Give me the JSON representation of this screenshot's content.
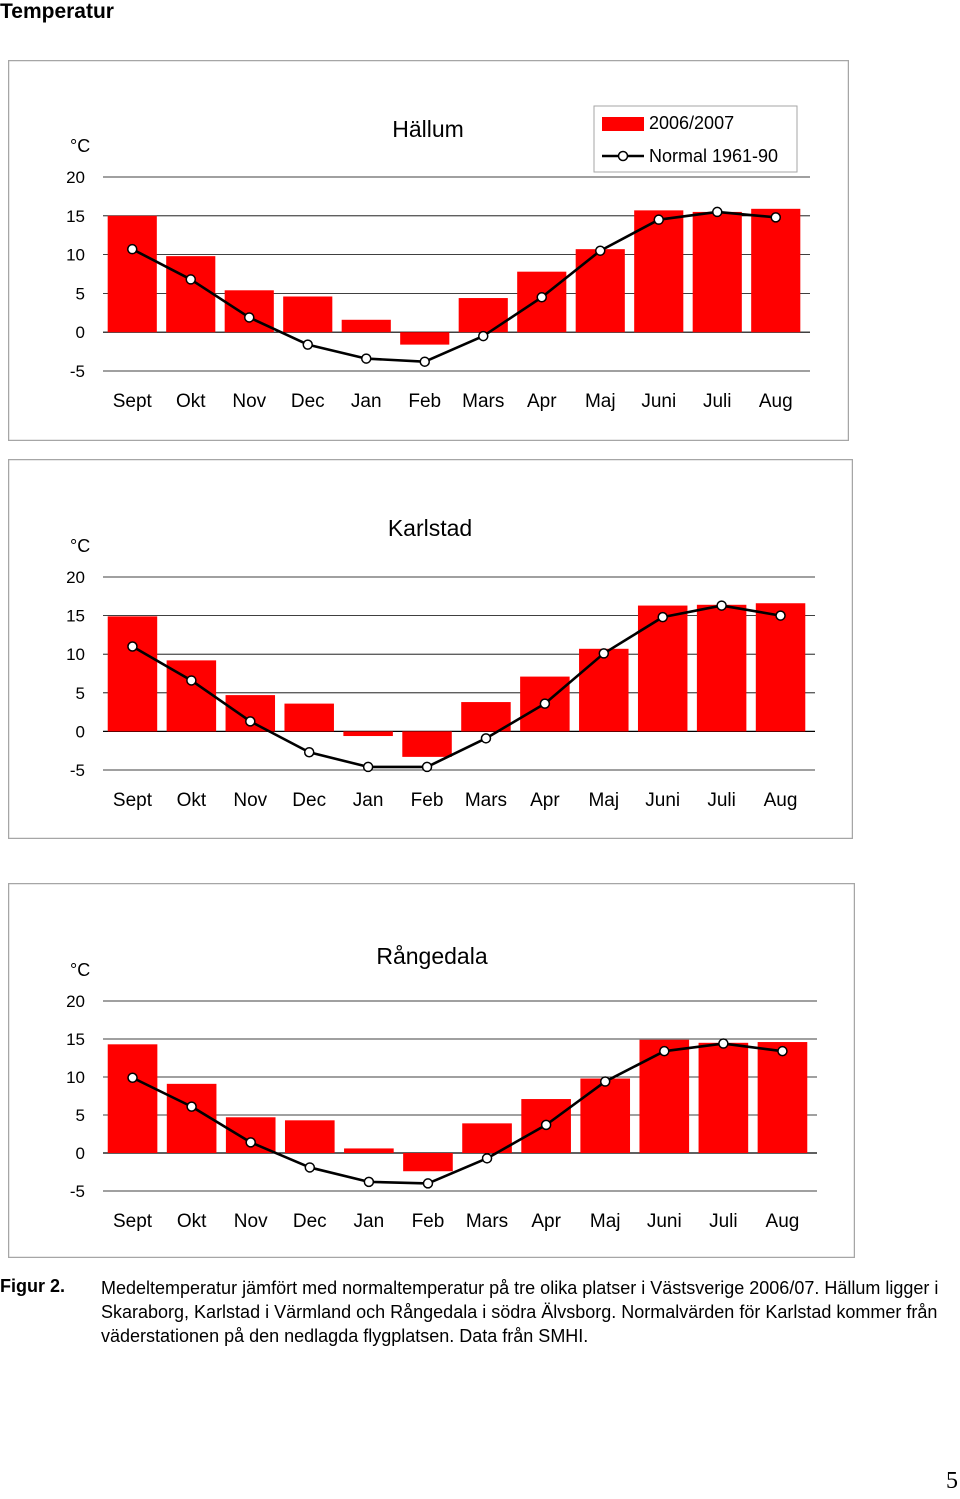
{
  "page": {
    "heading": "Temperatur",
    "figure_label": "Figur 2.",
    "caption": "Medeltemperatur jämfört med normaltemperatur på tre olika platser i Västsverige 2006/07. Hällum ligger i Skaraborg, Karlstad i Värmland och Rångedala i södra Älvsborg. Normalvärden för Karlstad kommer från väderstationen på den nedlagda flygplatsen. Data från SMHI.",
    "page_number": "5"
  },
  "colors": {
    "bar": "#ff0000",
    "line": "#000000",
    "marker_fill": "#ffffff",
    "grid": "#000000",
    "panel_border": "#a6a6a6"
  },
  "chart_data": [
    {
      "type": "bar",
      "title": "Hällum",
      "ylabel": "°C",
      "ylim": [
        -5,
        20
      ],
      "yticks": [
        20,
        15,
        10,
        5,
        0,
        -5
      ],
      "grid": true,
      "legend": "top-right",
      "categories": [
        "Sept",
        "Okt",
        "Nov",
        "Dec",
        "Jan",
        "Feb",
        "Mars",
        "Apr",
        "Maj",
        "Juni",
        "Juli",
        "Aug"
      ],
      "series": [
        {
          "name": "2006/2007",
          "kind": "bar",
          "values": [
            15.0,
            9.8,
            5.4,
            4.6,
            1.6,
            -1.6,
            4.4,
            7.8,
            10.7,
            15.7,
            15.5,
            15.9
          ]
        },
        {
          "name": "Normal 1961-90",
          "kind": "line",
          "values": [
            10.7,
            6.8,
            1.9,
            -1.6,
            -3.4,
            -3.8,
            -0.5,
            4.5,
            10.5,
            14.5,
            15.5,
            14.8
          ]
        }
      ]
    },
    {
      "type": "bar",
      "title": "Karlstad",
      "ylabel": "°C",
      "ylim": [
        -5,
        20
      ],
      "yticks": [
        20,
        15,
        10,
        5,
        0,
        -5
      ],
      "grid": true,
      "categories": [
        "Sept",
        "Okt",
        "Nov",
        "Dec",
        "Jan",
        "Feb",
        "Mars",
        "Apr",
        "Maj",
        "Juni",
        "Juli",
        "Aug"
      ],
      "series": [
        {
          "name": "2006/2007",
          "kind": "bar",
          "values": [
            14.9,
            9.2,
            4.7,
            3.6,
            -0.6,
            -3.3,
            3.8,
            7.1,
            10.7,
            16.3,
            16.4,
            16.6
          ]
        },
        {
          "name": "Normal 1961-90",
          "kind": "line",
          "values": [
            11.0,
            6.6,
            1.3,
            -2.7,
            -4.6,
            -4.6,
            -0.9,
            3.6,
            10.1,
            14.8,
            16.3,
            15.0
          ]
        }
      ]
    },
    {
      "type": "bar",
      "title": "Rångedala",
      "ylabel": "°C",
      "ylim": [
        -5,
        20
      ],
      "yticks": [
        20,
        15,
        10,
        5,
        0,
        -5
      ],
      "grid": true,
      "categories": [
        "Sept",
        "Okt",
        "Nov",
        "Dec",
        "Jan",
        "Feb",
        "Mars",
        "Apr",
        "Maj",
        "Juni",
        "Juli",
        "Aug"
      ],
      "series": [
        {
          "name": "2006/2007",
          "kind": "bar",
          "values": [
            14.3,
            9.1,
            4.7,
            4.3,
            0.6,
            -2.4,
            3.9,
            7.1,
            9.8,
            14.9,
            14.5,
            14.6
          ]
        },
        {
          "name": "Normal 1961-90",
          "kind": "line",
          "values": [
            9.9,
            6.1,
            1.4,
            -1.9,
            -3.8,
            -4.0,
            -0.7,
            3.7,
            9.4,
            13.4,
            14.4,
            13.4
          ]
        }
      ]
    }
  ]
}
